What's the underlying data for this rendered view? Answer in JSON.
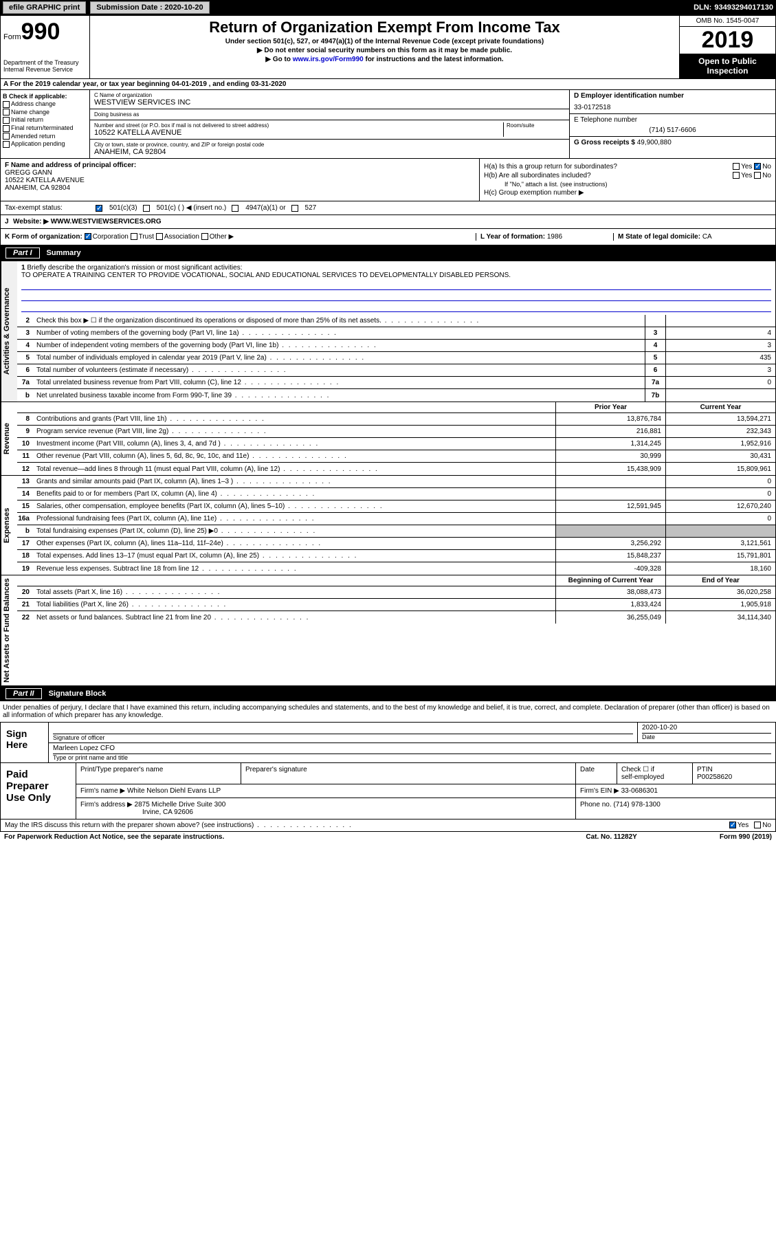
{
  "topbar": {
    "efile": "efile GRAPHIC print",
    "subdate_label": "Submission Date :",
    "subdate": "2020-10-20",
    "dln_label": "DLN:",
    "dln": "93493294017130"
  },
  "header": {
    "form_word": "Form",
    "form_num": "990",
    "dept1": "Department of the Treasury",
    "dept2": "Internal Revenue Service",
    "title": "Return of Organization Exempt From Income Tax",
    "sub1": "Under section 501(c), 527, or 4947(a)(1) of the Internal Revenue Code (except private foundations)",
    "sub2": "▶ Do not enter social security numbers on this form as it may be made public.",
    "sub3_pre": "▶ Go to ",
    "sub3_link": "www.irs.gov/Form990",
    "sub3_post": " for instructions and the latest information.",
    "omb": "OMB No. 1545-0047",
    "year": "2019",
    "open": "Open to Public Inspection"
  },
  "secA": "A For the 2019 calendar year, or tax year beginning 04-01-2019    , and ending 03-31-2020",
  "colB": {
    "title": "B Check if applicable:",
    "items": [
      "Address change",
      "Name change",
      "Initial return",
      "Final return/terminated",
      "Amended return",
      "Application pending"
    ]
  },
  "colC": {
    "name_lbl": "C Name of organization",
    "name": "WESTVIEW SERVICES INC",
    "dba_lbl": "Doing business as",
    "dba": "",
    "addr_lbl": "Number and street (or P.O. box if mail is not delivered to street address)",
    "room_lbl": "Room/suite",
    "addr": "10522 KATELLA AVENUE",
    "city_lbl": "City or town, state or province, country, and ZIP or foreign postal code",
    "city": "ANAHEIM, CA  92804"
  },
  "colDE": {
    "d_lbl": "D Employer identification number",
    "d_val": "33-0172518",
    "e_lbl": "E Telephone number",
    "e_val": "(714) 517-6606",
    "g_lbl": "G Gross receipts $",
    "g_val": "49,900,880"
  },
  "rowF": {
    "lbl": "F  Name and address of principal officer:",
    "name": "GREGG GANN",
    "addr1": "10522 KATELLA AVENUE",
    "addr2": "ANAHEIM, CA  92804"
  },
  "rowH": {
    "ha": "H(a)  Is this a group return for subordinates?",
    "hb": "H(b)  Are all subordinates included?",
    "hb_note": "If \"No,\" attach a list. (see instructions)",
    "hc": "H(c)  Group exemption number ▶",
    "yes": "Yes",
    "no": "No"
  },
  "taxrow": {
    "lbl": "Tax-exempt status:",
    "o1": "501(c)(3)",
    "o2": "501(c) (  ) ◀ (insert no.)",
    "o3": "4947(a)(1) or",
    "o4": "527"
  },
  "rowJ": {
    "lbl": "J",
    "text": "Website: ▶  WWW.WESTVIEWSERVICES.ORG"
  },
  "rowK": {
    "k": "K Form of organization:",
    "opts": [
      "Corporation",
      "Trust",
      "Association",
      "Other ▶"
    ],
    "l_lbl": "L Year of formation:",
    "l_val": "1986",
    "m_lbl": "M State of legal domicile:",
    "m_val": "CA"
  },
  "part1": {
    "num": "Part I",
    "title": "Summary"
  },
  "mission": {
    "num": "1",
    "lbl": "Briefly describe the organization's mission or most significant activities:",
    "text": "TO OPERATE A TRAINING CENTER TO PROVIDE VOCATIONAL, SOCIAL AND EDUCATIONAL SERVICES TO DEVELOPMENTALLY DISABLED PERSONS."
  },
  "gov_lines": [
    {
      "n": "2",
      "d": "Check this box ▶ ☐  if the organization discontinued its operations or disposed of more than 25% of its net assets.",
      "box": "",
      "v": ""
    },
    {
      "n": "3",
      "d": "Number of voting members of the governing body (Part VI, line 1a)",
      "box": "3",
      "v": "4"
    },
    {
      "n": "4",
      "d": "Number of independent voting members of the governing body (Part VI, line 1b)",
      "box": "4",
      "v": "3"
    },
    {
      "n": "5",
      "d": "Total number of individuals employed in calendar year 2019 (Part V, line 2a)",
      "box": "5",
      "v": "435"
    },
    {
      "n": "6",
      "d": "Total number of volunteers (estimate if necessary)",
      "box": "6",
      "v": "3"
    },
    {
      "n": "7a",
      "d": "Total unrelated business revenue from Part VIII, column (C), line 12",
      "box": "7a",
      "v": "0"
    },
    {
      "n": "b",
      "d": "Net unrelated business taxable income from Form 990-T, line 39",
      "box": "7b",
      "v": ""
    }
  ],
  "yr_hdr": {
    "py": "Prior Year",
    "cy": "Current Year"
  },
  "rev_lines": [
    {
      "n": "8",
      "d": "Contributions and grants (Part VIII, line 1h)",
      "py": "13,876,784",
      "cy": "13,594,271"
    },
    {
      "n": "9",
      "d": "Program service revenue (Part VIII, line 2g)",
      "py": "216,881",
      "cy": "232,343"
    },
    {
      "n": "10",
      "d": "Investment income (Part VIII, column (A), lines 3, 4, and 7d )",
      "py": "1,314,245",
      "cy": "1,952,916"
    },
    {
      "n": "11",
      "d": "Other revenue (Part VIII, column (A), lines 5, 6d, 8c, 9c, 10c, and 11e)",
      "py": "30,999",
      "cy": "30,431"
    },
    {
      "n": "12",
      "d": "Total revenue—add lines 8 through 11 (must equal Part VIII, column (A), line 12)",
      "py": "15,438,909",
      "cy": "15,809,961"
    }
  ],
  "exp_lines": [
    {
      "n": "13",
      "d": "Grants and similar amounts paid (Part IX, column (A), lines 1–3 )",
      "py": "",
      "cy": "0"
    },
    {
      "n": "14",
      "d": "Benefits paid to or for members (Part IX, column (A), line 4)",
      "py": "",
      "cy": "0"
    },
    {
      "n": "15",
      "d": "Salaries, other compensation, employee benefits (Part IX, column (A), lines 5–10)",
      "py": "12,591,945",
      "cy": "12,670,240"
    },
    {
      "n": "16a",
      "d": "Professional fundraising fees (Part IX, column (A), line 11e)",
      "py": "",
      "cy": "0"
    },
    {
      "n": "b",
      "d": "Total fundraising expenses (Part IX, column (D), line 25) ▶0",
      "py": "shade",
      "cy": "shade"
    },
    {
      "n": "17",
      "d": "Other expenses (Part IX, column (A), lines 11a–11d, 11f–24e)",
      "py": "3,256,292",
      "cy": "3,121,561"
    },
    {
      "n": "18",
      "d": "Total expenses. Add lines 13–17 (must equal Part IX, column (A), line 25)",
      "py": "15,848,237",
      "cy": "15,791,801"
    },
    {
      "n": "19",
      "d": "Revenue less expenses. Subtract line 18 from line 12",
      "py": "-409,328",
      "cy": "18,160"
    }
  ],
  "na_hdr": {
    "boy": "Beginning of Current Year",
    "eoy": "End of Year"
  },
  "na_lines": [
    {
      "n": "20",
      "d": "Total assets (Part X, line 16)",
      "py": "38,088,473",
      "cy": "36,020,258"
    },
    {
      "n": "21",
      "d": "Total liabilities (Part X, line 26)",
      "py": "1,833,424",
      "cy": "1,905,918"
    },
    {
      "n": "22",
      "d": "Net assets or fund balances. Subtract line 21 from line 20",
      "py": "36,255,049",
      "cy": "34,114,340"
    }
  ],
  "vtabs": {
    "gov": "Activities & Governance",
    "rev": "Revenue",
    "exp": "Expenses",
    "na": "Net Assets or Fund Balances"
  },
  "part2": {
    "num": "Part II",
    "title": "Signature Block"
  },
  "sig_intro": "Under penalties of perjury, I declare that I have examined this return, including accompanying schedules and statements, and to the best of my knowledge and belief, it is true, correct, and complete. Declaration of preparer (other than officer) is based on all information of which preparer has any knowledge.",
  "sig": {
    "here": "Sign Here",
    "sig_lbl": "Signature of officer",
    "date_lbl": "Date",
    "date": "2020-10-20",
    "name": "Marleen Lopez CFO",
    "name_lbl": "Type or print name and title"
  },
  "prep": {
    "title": "Paid Preparer Use Only",
    "h1": "Print/Type preparer's name",
    "h2": "Preparer's signature",
    "h3": "Date",
    "h4_a": "Check ☐ if",
    "h4_b": "self-employed",
    "h5": "PTIN",
    "ptin": "P00258620",
    "firm_lbl": "Firm's name      ▶",
    "firm": "White Nelson Diehl Evans LLP",
    "ein_lbl": "Firm's EIN ▶",
    "ein": "33-0686301",
    "addr_lbl": "Firm's address ▶",
    "addr1": "2875 Michelle Drive Suite 300",
    "addr2": "Irvine, CA  92606",
    "phone_lbl": "Phone no.",
    "phone": "(714) 978-1300"
  },
  "footer": {
    "discuss": "May the IRS discuss this return with the preparer shown above? (see instructions)",
    "yes": "Yes",
    "no": "No",
    "pra": "For Paperwork Reduction Act Notice, see the separate instructions.",
    "cat": "Cat. No. 11282Y",
    "form": "Form 990 (2019)"
  }
}
